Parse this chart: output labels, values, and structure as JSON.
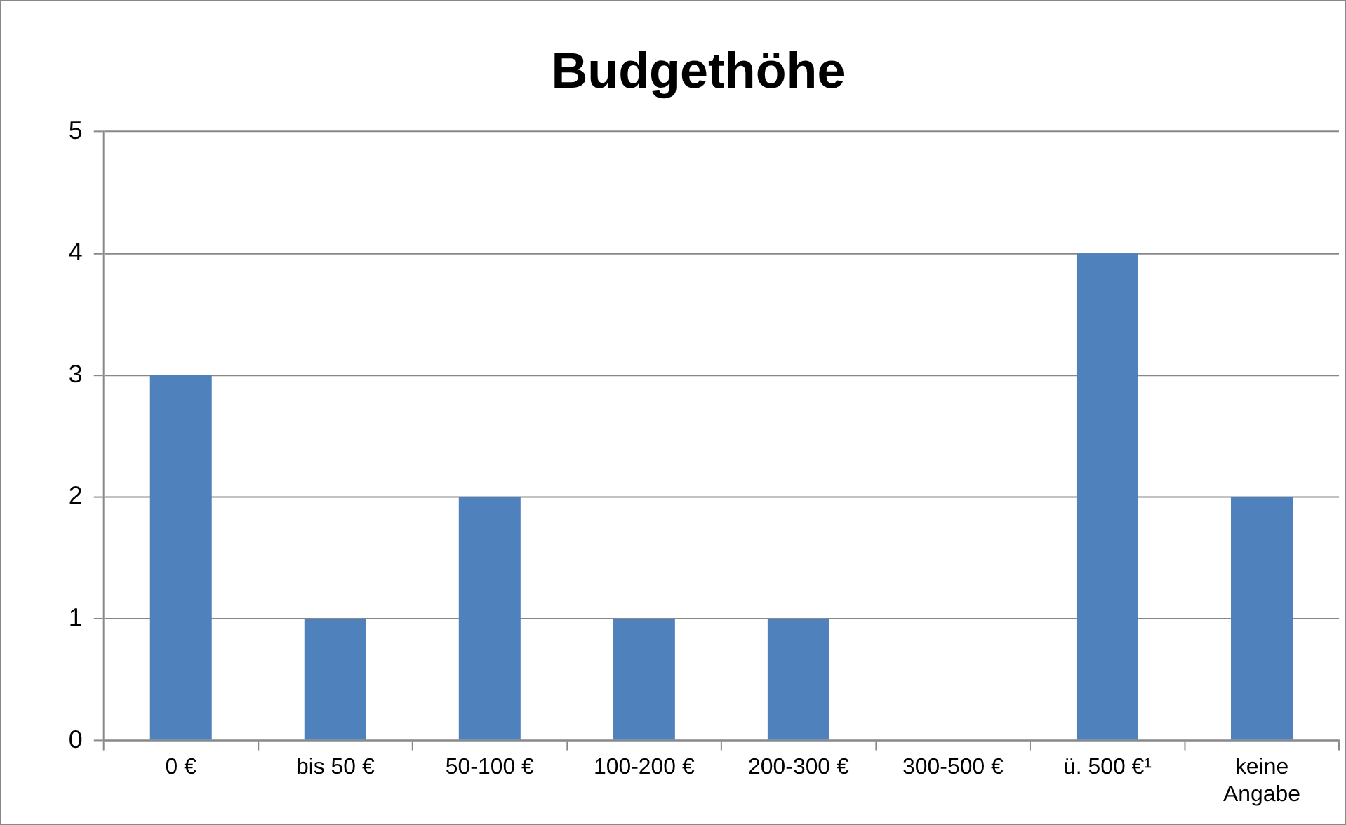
{
  "chart_data": {
    "type": "bar",
    "title": "Budgethöhe",
    "categories": [
      "0 €",
      "bis 50 €",
      "50-100 €",
      "100-200 €",
      "200-300 €",
      "300-500 €",
      "ü. 500 €¹",
      "keine Angabe"
    ],
    "values": [
      3,
      1,
      2,
      1,
      1,
      0,
      4,
      2
    ],
    "color": "#4f81bd",
    "ylim": [
      0,
      5
    ],
    "yticks": [
      0,
      1,
      2,
      3,
      4,
      5
    ],
    "grid": "y",
    "legend": false
  }
}
